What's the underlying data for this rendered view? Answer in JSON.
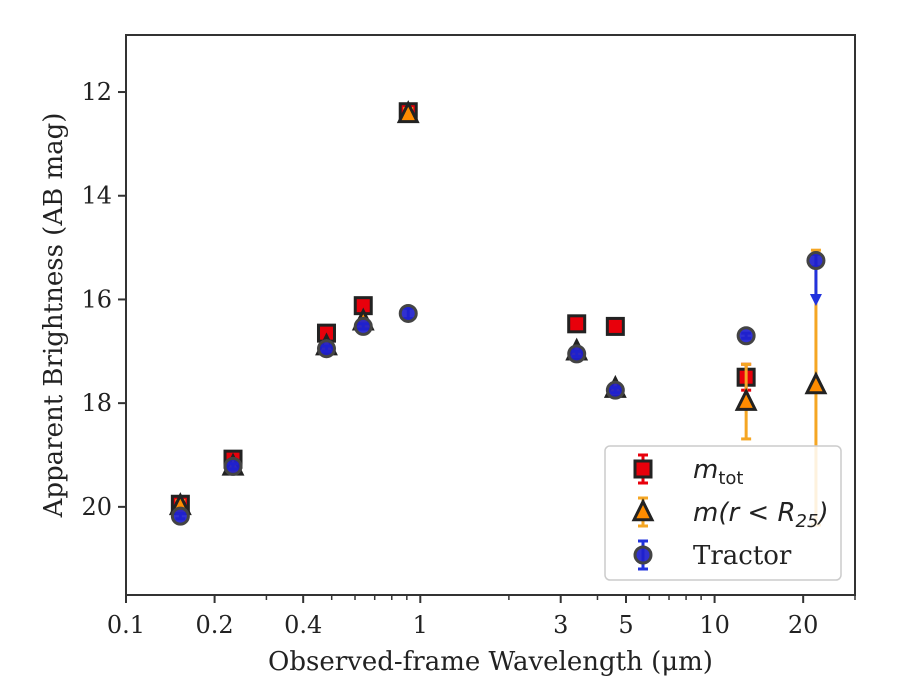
{
  "chart_data": {
    "type": "scatter",
    "xlabel": "Observed-frame Wavelength (μm)",
    "ylabel": "Apparent Brightness (AB mag)",
    "xscale": "log",
    "xlim": [
      0.1,
      30
    ],
    "ylim": [
      21.7,
      10.9
    ],
    "y_inverted": true,
    "xticks": [
      {
        "value": 0.1,
        "label": "0.1"
      },
      {
        "value": 0.2,
        "label": "0.2"
      },
      {
        "value": 0.4,
        "label": "0.4"
      },
      {
        "value": 1,
        "label": "1"
      },
      {
        "value": 3,
        "label": "3"
      },
      {
        "value": 5,
        "label": "5"
      },
      {
        "value": 10,
        "label": "10"
      },
      {
        "value": 20,
        "label": "20"
      }
    ],
    "yticks": [
      {
        "value": 12,
        "label": "12"
      },
      {
        "value": 14,
        "label": "14"
      },
      {
        "value": 16,
        "label": "16"
      },
      {
        "value": 18,
        "label": "18"
      },
      {
        "value": 20,
        "label": "20"
      }
    ],
    "grid": false,
    "legend_position": "lower-right",
    "series": [
      {
        "name": "m_tot",
        "legend_main": "m",
        "legend_sub": "tot",
        "marker": "square",
        "color": "#e8000b",
        "edge_color": "#222222",
        "error_color": "#e8000b",
        "points": [
          {
            "x": 0.153,
            "y": 19.95,
            "err": 0.1
          },
          {
            "x": 0.231,
            "y": 19.08,
            "err": 0.1
          },
          {
            "x": 0.48,
            "y": 16.65,
            "err": 0.05
          },
          {
            "x": 0.64,
            "y": 16.12,
            "err": 0.05
          },
          {
            "x": 0.91,
            "y": 12.38,
            "err": 0.12
          },
          {
            "x": 3.4,
            "y": 16.47,
            "err": 0.05
          },
          {
            "x": 4.6,
            "y": 16.52,
            "err": 0.05
          },
          {
            "x": 12.8,
            "y": 17.5,
            "err": 0.25
          }
        ]
      },
      {
        "name": "m(r < R_25)",
        "legend_main": "m(r < R",
        "legend_sub": "25",
        "legend_end": ")",
        "marker": "triangle",
        "color": "#ff8c00",
        "edge_color": "#222222",
        "error_color": "#f5a623",
        "points": [
          {
            "x": 0.153,
            "y": 19.98,
            "err": 0.1
          },
          {
            "x": 0.231,
            "y": 19.22,
            "err": 0.1
          },
          {
            "x": 0.48,
            "y": 16.9,
            "err": 0.05
          },
          {
            "x": 0.64,
            "y": 16.42,
            "err": 0.05
          },
          {
            "x": 0.91,
            "y": 12.42,
            "err": 0.1
          },
          {
            "x": 3.4,
            "y": 17.0,
            "err": 0.05
          },
          {
            "x": 4.6,
            "y": 17.72,
            "err": 0.05
          },
          {
            "x": 12.8,
            "y": 17.97,
            "err": 0.72
          },
          {
            "x": 22.1,
            "y": 17.65,
            "err_low": 2.6,
            "err_high": 2.7
          }
        ]
      },
      {
        "name": "Tractor",
        "legend_main": "Tractor",
        "marker": "circle",
        "color": "#1f1fcc",
        "edge_color": "#444444",
        "error_color": "#2233dd",
        "points": [
          {
            "x": 0.153,
            "y": 20.18,
            "err": 0.05
          },
          {
            "x": 0.231,
            "y": 19.22,
            "err": 0.05
          },
          {
            "x": 0.48,
            "y": 16.95,
            "err": 0.05
          },
          {
            "x": 0.64,
            "y": 16.52,
            "err": 0.05
          },
          {
            "x": 0.91,
            "y": 16.27,
            "err": 0.1
          },
          {
            "x": 3.4,
            "y": 17.05,
            "err": 0.05
          },
          {
            "x": 4.6,
            "y": 17.75,
            "err": 0.05
          },
          {
            "x": 12.8,
            "y": 16.7,
            "err": 0.05
          },
          {
            "x": 22.1,
            "y": 15.25,
            "err": 0.12,
            "upper_limit_to": 16.05
          }
        ]
      }
    ]
  }
}
